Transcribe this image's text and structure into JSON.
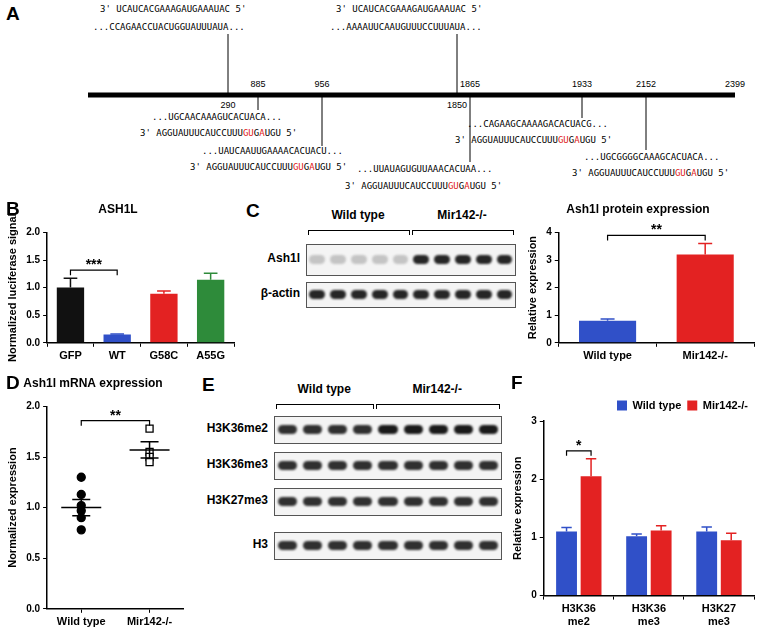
{
  "diagram": {
    "panel": "A",
    "end_position": 2399,
    "sites": [
      {
        "position": 290,
        "side": "top",
        "mirna": [
          {
            "text": "3' UCAUCACGAAAGAUGAAAUAC 5'",
            "red": false
          }
        ],
        "target": "...CCAGAACCUACUGGUAUUUAUA..."
      },
      {
        "position": 1850,
        "side": "top",
        "mirna": [
          {
            "text": "3' UCAUCACGAAAGAUGAAAUAC 5'",
            "red": false
          }
        ],
        "target": "...AAAAUUCAAUGUUUCCUUUAUA..."
      },
      {
        "position": 885,
        "side": "bottom",
        "mirna": [
          {
            "text": "3' AGGUAUUUCAUCCUUU",
            "red": false
          },
          {
            "text": "GU",
            "red": true
          },
          {
            "text": "G",
            "red": false
          },
          {
            "text": "A",
            "red": true
          },
          {
            "text": "UGU 5'",
            "red": false
          }
        ],
        "target": "...UGCAACAAAGUCACUACA..."
      },
      {
        "position": 956,
        "side": "bottom",
        "mirna": [
          {
            "text": "3' AGGUAUUUCAUCCUUU",
            "red": false
          },
          {
            "text": "GU",
            "red": true
          },
          {
            "text": "G",
            "red": false
          },
          {
            "text": "A",
            "red": true
          },
          {
            "text": "UGU 5'",
            "red": false
          }
        ],
        "target": "...UAUCAAUUGAAAACACUACU..."
      },
      {
        "position": 1865,
        "side": "bottom",
        "mirna": [
          {
            "text": "3' AGGUAUUUCAUCCUUU",
            "red": false
          },
          {
            "text": "GU",
            "red": true
          },
          {
            "text": "G",
            "red": false
          },
          {
            "text": "A",
            "red": true
          },
          {
            "text": "UGU 5'",
            "red": false
          }
        ],
        "target": "...UUAUAGUGUUAAACACUAA..."
      },
      {
        "position": 1933,
        "side": "bottom",
        "mirna": [
          {
            "text": "3' AGGUAUUUCAUCCUUU",
            "red": false
          },
          {
            "text": "GU",
            "red": true
          },
          {
            "text": "G",
            "red": false
          },
          {
            "text": "A",
            "red": true
          },
          {
            "text": "UGU 5'",
            "red": false
          }
        ],
        "target": "...CAGAAGCAAAAGACACUACG..."
      },
      {
        "position": 2152,
        "side": "bottom",
        "mirna": [
          {
            "text": "3' AGGUAUUUCAUCCUUU",
            "red": false
          },
          {
            "text": "GU",
            "red": true
          },
          {
            "text": "G",
            "red": false
          },
          {
            "text": "A",
            "red": true
          },
          {
            "text": "UGU 5'",
            "red": false
          }
        ],
        "target": "...UGCGGGGCAAAGCACUACA..."
      }
    ]
  },
  "blots": [
    {
      "panel": "C",
      "groups": [
        "Wild type",
        "Mir142-/-"
      ],
      "rows": [
        "Ash1l",
        "β-actin"
      ]
    },
    {
      "panel": "E",
      "groups": [
        "Wild type",
        "Mir142-/-"
      ],
      "rows": [
        "H3K36me2",
        "H3K36me3",
        "H3K27me3",
        "H3"
      ]
    }
  ],
  "chart_data": [
    {
      "panel": "B",
      "type": "bar",
      "title": "ASH1L",
      "y_label": "Normalized luciferase signal",
      "categories": [
        "GFP",
        "WT",
        "G58C",
        "A55G"
      ],
      "values": [
        1.0,
        0.15,
        0.89,
        1.14
      ],
      "errors": [
        0.17,
        0.01,
        0.05,
        0.12
      ],
      "colors": [
        "#111111",
        "#3050c8",
        "#e32222",
        "#2e8b3a"
      ],
      "ylim": [
        0,
        2
      ],
      "yticks": [
        {
          "value": 0,
          "label": "0.0"
        },
        0.5,
        {
          "value": 1,
          "label": "1.0"
        },
        1.5,
        {
          "value": 2,
          "label": "2.0"
        }
      ],
      "grid": false,
      "annotations": [
        {
          "text": "***",
          "between": [
            "GFP",
            "WT"
          ]
        }
      ]
    },
    {
      "type": "bar",
      "title": "Ash1l protein expression",
      "y_label": "Relative expression",
      "categories": [
        "Wild type",
        "Mir142-/-"
      ],
      "values": [
        0.8,
        3.2
      ],
      "errors": [
        0.06,
        0.4
      ],
      "colors": [
        "#3050c8",
        "#e32222"
      ],
      "ylim": [
        0,
        4
      ],
      "yticks": [
        0,
        1,
        2,
        3,
        4
      ],
      "grid": false,
      "annotations": [
        {
          "text": "**",
          "between": [
            "Wild type",
            "Mir142-/-"
          ]
        }
      ]
    },
    {
      "panel": "D",
      "type": "scatter",
      "title": "Ash1l mRNA expression",
      "y_label": "Normalized expression",
      "categories": [
        "Wild type",
        "Mir142-/-"
      ],
      "groups": [
        {
          "category": "Wild type",
          "marker": "circle",
          "values": [
            1.3,
            1.13,
            1.02,
            0.97,
            0.9,
            0.78
          ],
          "mean": 1.0,
          "sem": 0.08
        },
        {
          "category": "Mir142-/-",
          "marker": "open_square",
          "values": [
            1.78,
            1.55,
            1.5,
            1.45
          ],
          "mean": 1.57,
          "sem": 0.08
        }
      ],
      "ylim": [
        0,
        2
      ],
      "yticks": [
        {
          "value": 0,
          "label": "0.0"
        },
        0.5,
        {
          "value": 1,
          "label": "1.0"
        },
        1.5,
        {
          "value": 2,
          "label": "2.0"
        }
      ],
      "grid": false,
      "annotations": [
        {
          "text": "**",
          "between": [
            "Wild type",
            "Mir142-/-"
          ]
        }
      ]
    },
    {
      "panel": "F",
      "type": "bar",
      "y_label": "Relative expression",
      "categories": [
        [
          "H3K36",
          "me2"
        ],
        [
          "H3K36",
          "me3"
        ],
        [
          "H3K27",
          "me3"
        ]
      ],
      "series": [
        {
          "name": "Wild type",
          "color": "#3050c8",
          "values": [
            1.1,
            1.02,
            1.1
          ],
          "errors": [
            0.07,
            0.04,
            0.08
          ]
        },
        {
          "name": "Mir142-/-",
          "color": "#e32222",
          "values": [
            2.05,
            1.12,
            0.95
          ],
          "errors": [
            0.3,
            0.08,
            0.12
          ]
        }
      ],
      "ylim": [
        0,
        3
      ],
      "yticks": [
        0,
        1,
        2,
        3
      ],
      "grid": false,
      "legend": "top-right",
      "annotations": [
        {
          "text": "*",
          "group": [
            "H3K36",
            "me2"
          ]
        }
      ]
    }
  ]
}
